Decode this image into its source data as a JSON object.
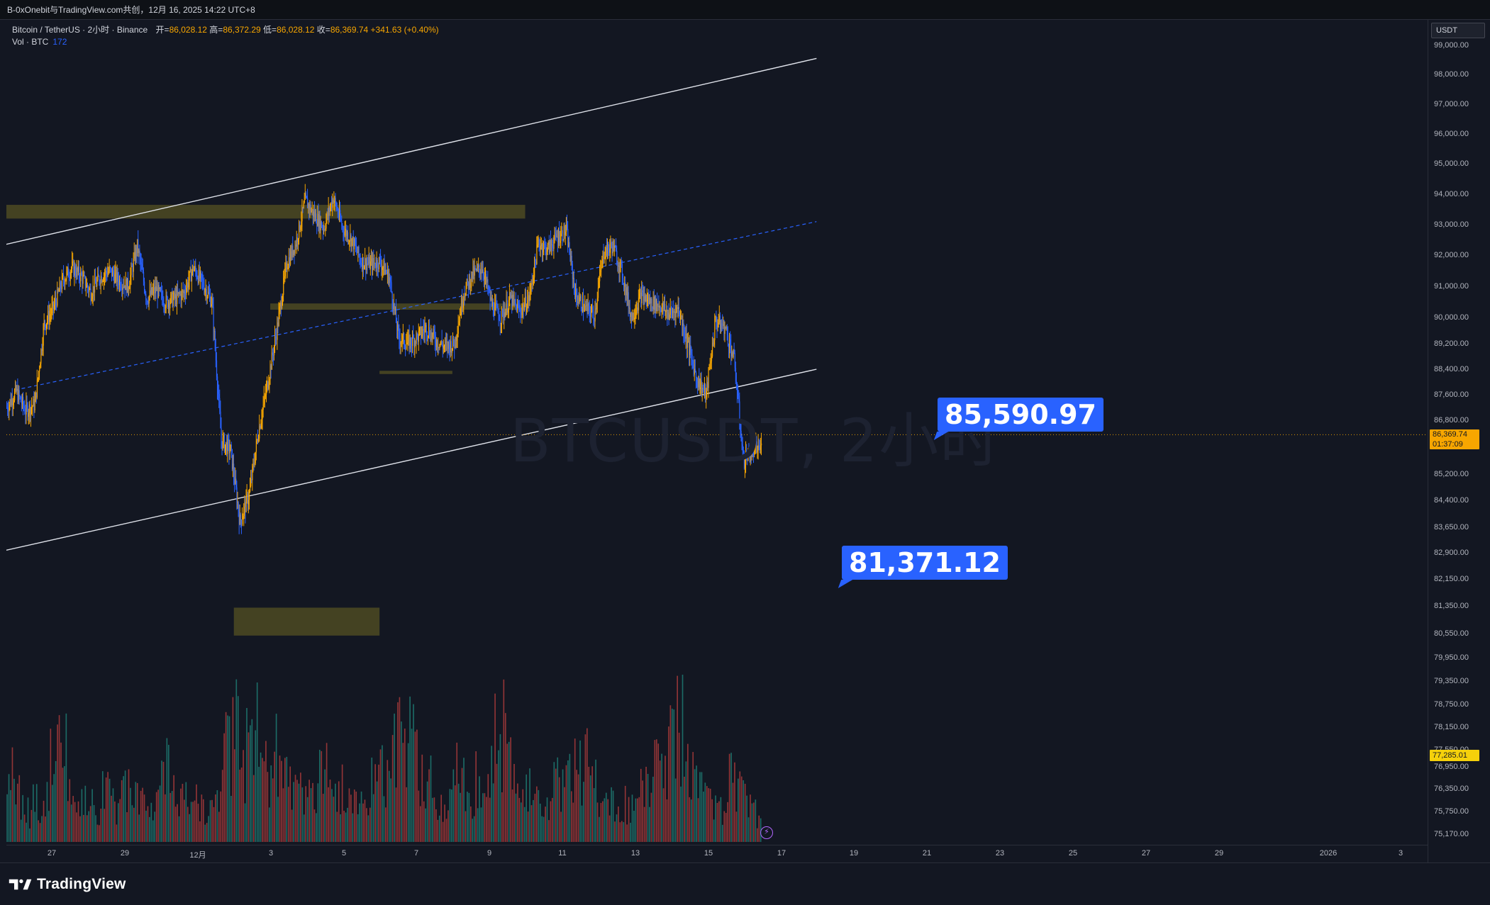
{
  "topbar": {
    "text": "B-0xOnebit与TradingView.com共创，12月 16, 2025 14:22 UTC+8"
  },
  "legend": {
    "symbol": "Bitcoin / TetherUS · 2小时 · Binance",
    "open_label": "开=",
    "open_value": "86,028.12",
    "high_label": "高=",
    "high_value": "86,372.29",
    "low_label": "低=",
    "low_value": "86,028.12",
    "close_label": "收=",
    "close_value": "86,369.74",
    "change": "+341.63 (+0.40%)",
    "vol_label": "Vol · BTC",
    "vol_value": "172"
  },
  "watermark": "BTCUSDT, 2小时",
  "callouts": [
    "85,590.97",
    "81,371.12"
  ],
  "price_axis": {
    "currency": "USDT",
    "ticks": [
      "99,000.00",
      "98,000.00",
      "97,000.00",
      "96,000.00",
      "95,000.00",
      "94,000.00",
      "93,000.00",
      "92,000.00",
      "91,000.00",
      "90,000.00",
      "89,200.00",
      "88,400.00",
      "87,600.00",
      "86,800.00",
      "85,200.00",
      "84,400.00",
      "83,650.00",
      "82,900.00",
      "82,150.00",
      "81,350.00",
      "80,550.00",
      "79,950.00",
      "79,350.00",
      "78,750.00",
      "78,150.00",
      "77,550.00",
      "76,950.00",
      "76,350.00",
      "75,750.00",
      "75,170.00"
    ],
    "last_price": "86,369.74",
    "countdown": "01:37:09",
    "vol_tag": "77,285.01"
  },
  "time_axis": {
    "ticks": [
      "27",
      "29",
      "12月",
      "3",
      "5",
      "7",
      "9",
      "11",
      "13",
      "15",
      "17",
      "19",
      "21",
      "23",
      "25",
      "27",
      "29",
      "2026",
      "3"
    ]
  },
  "footer": {
    "brand": "TradingView"
  },
  "colors": {
    "background": "#131722",
    "up": "#f7a600",
    "down": "#2962ff",
    "zone": "#4d4a22",
    "callout": "#2962ff",
    "vol_up": "#1f7a72",
    "vol_down": "#a83a3a"
  },
  "chart_data": {
    "type": "candlestick",
    "symbol": "BTCUSDT",
    "interval": "2h",
    "ylim": [
      74900,
      99600
    ],
    "current_price": 86369.74,
    "channel_lines": [
      {
        "style": "solid",
        "from": {
          "date": "2025-11-25",
          "price": 92150
        },
        "to": {
          "date": "2025-12-18",
          "price": 98550
        }
      },
      {
        "style": "dashed",
        "from": {
          "date": "2025-11-26",
          "price": 87750
        },
        "to": {
          "date": "2025-12-18",
          "price": 93100
        }
      },
      {
        "style": "solid",
        "from": {
          "date": "2025-11-25",
          "price": 82800
        },
        "to": {
          "date": "2025-12-18",
          "price": 88400
        }
      }
    ],
    "zones": [
      {
        "from": "2025-11-25",
        "to": "2025-12-10",
        "price_low": 93200,
        "price_high": 93650
      },
      {
        "from": "2025-12-03",
        "to": "2025-12-10",
        "price_low": 90250,
        "price_high": 90450
      },
      {
        "from": "2025-12-06",
        "to": "2025-12-08",
        "price_low": 88250,
        "price_high": 88350
      },
      {
        "from": "2025-12-02",
        "to": "2025-12-06",
        "price_low": 80500,
        "price_high": 81300
      }
    ],
    "price_path": [
      87200,
      87700,
      87100,
      87300,
      89800,
      90300,
      91200,
      91600,
      91300,
      90800,
      91300,
      91500,
      91200,
      91000,
      92300,
      90600,
      90900,
      90500,
      90600,
      90800,
      91600,
      91100,
      90500,
      86200,
      85900,
      83800,
      84600,
      86500,
      88000,
      89700,
      91700,
      92400,
      93800,
      93300,
      92900,
      93900,
      92900,
      92500,
      91800,
      91700,
      91800,
      91300,
      89400,
      89200,
      89400,
      89700,
      89300,
      89100,
      89200,
      90800,
      91400,
      91600,
      90400,
      90000,
      90600,
      90200,
      90600,
      92400,
      92200,
      92600,
      92800,
      90700,
      90300,
      90100,
      92100,
      92300,
      91400,
      90000,
      90700,
      90500,
      90400,
      90100,
      90300,
      89200,
      88100,
      87600,
      89900,
      89700,
      88700,
      85600,
      85900,
      86000
    ],
    "volume_bars": [
      7,
      5,
      3,
      4,
      6,
      8,
      9,
      6,
      5,
      4,
      3,
      5,
      4,
      6,
      5,
      4,
      3,
      7,
      8,
      6,
      4,
      5,
      4,
      3,
      5,
      10,
      11,
      9,
      12,
      8,
      7,
      9,
      6,
      5,
      5,
      4,
      8,
      7,
      6,
      5,
      4,
      5,
      6,
      7,
      9,
      12,
      10,
      8,
      6,
      5,
      4,
      7,
      6,
      5,
      8,
      9,
      10,
      11,
      7,
      6,
      5,
      4,
      3,
      6,
      7,
      9,
      8,
      6,
      5,
      4,
      3,
      4,
      5,
      6,
      7,
      8,
      10,
      12,
      9,
      7,
      5,
      4,
      3,
      6,
      5,
      4,
      3
    ]
  }
}
